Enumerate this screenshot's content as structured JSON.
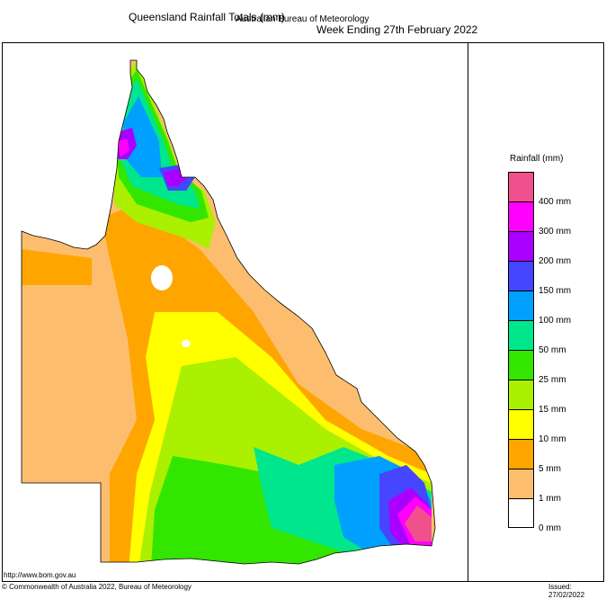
{
  "header": {
    "title_left": "Queensland Rainfall Totals (mm)",
    "title_right": "Week Ending 27th February 2022",
    "subtitle": "Australian Bureau of Meteorology"
  },
  "legend": {
    "title": "Rainfall (mm)",
    "levels": [
      {
        "label": "",
        "color": "#f0508c"
      },
      {
        "label": "400 mm",
        "color": "#ff00ff"
      },
      {
        "label": "300 mm",
        "color": "#aa00ff"
      },
      {
        "label": "200 mm",
        "color": "#4646ff"
      },
      {
        "label": "150 mm",
        "color": "#00a0ff"
      },
      {
        "label": "100 mm",
        "color": "#00e68c"
      },
      {
        "label": "50 mm",
        "color": "#32e600"
      },
      {
        "label": "25 mm",
        "color": "#aaf000"
      },
      {
        "label": "15 mm",
        "color": "#ffff00"
      },
      {
        "label": "10 mm",
        "color": "#ffa500"
      },
      {
        "label": "5 mm",
        "color": "#fcbe6e"
      },
      {
        "label": "1 mm",
        "color": "#ffffff"
      },
      {
        "label": "0 mm",
        "color": ""
      }
    ]
  },
  "footer": {
    "url": "http://www.bom.gov.au",
    "copyright": "© Commonwealth of Australia 2022, Bureau of Meteorology",
    "issued": "Issued: 27/02/2022"
  }
}
